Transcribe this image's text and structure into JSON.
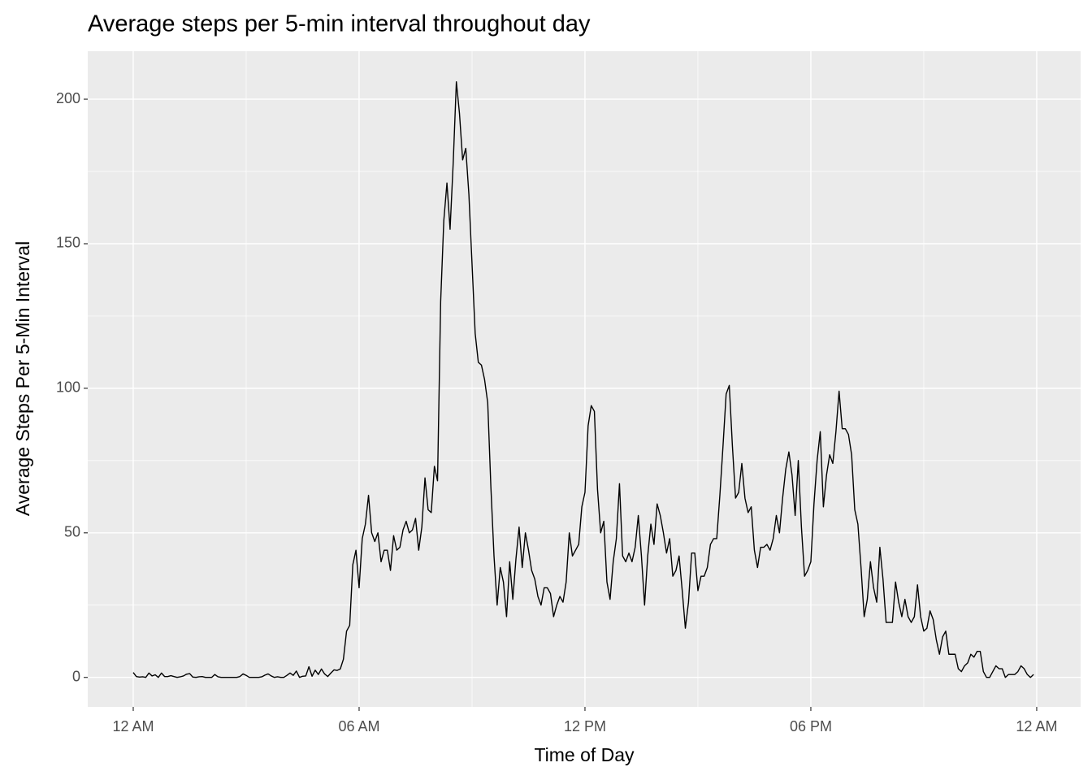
{
  "chart_data": {
    "type": "line",
    "title": "Average steps per 5-min interval throughout day",
    "x_label": "Time of Day",
    "y_label": "Average Steps Per 5-Min Interval",
    "color": "#000000",
    "grid": true,
    "xlim": [
      -72.5,
      1510
    ],
    "ylim": [
      -10.2,
      216.6
    ],
    "xticks": [
      {
        "value": 0,
        "label": "12 AM"
      },
      {
        "value": 360,
        "label": "06 AM"
      },
      {
        "value": 720,
        "label": "12 PM"
      },
      {
        "value": 1080,
        "label": "06 PM"
      },
      {
        "value": 1440,
        "label": "12 AM"
      }
    ],
    "yticks": [
      0,
      50,
      100,
      150,
      200
    ],
    "x": [
      0,
      5,
      10,
      15,
      20,
      25,
      30,
      35,
      40,
      45,
      50,
      55,
      60,
      65,
      70,
      75,
      80,
      85,
      90,
      95,
      100,
      105,
      110,
      115,
      120,
      125,
      130,
      135,
      140,
      145,
      150,
      155,
      160,
      165,
      170,
      175,
      180,
      185,
      190,
      195,
      200,
      205,
      210,
      215,
      220,
      225,
      230,
      235,
      240,
      245,
      250,
      255,
      260,
      265,
      270,
      275,
      280,
      285,
      290,
      295,
      300,
      305,
      310,
      315,
      320,
      325,
      330,
      335,
      340,
      345,
      350,
      355,
      360,
      365,
      370,
      375,
      380,
      385,
      390,
      395,
      400,
      405,
      410,
      415,
      420,
      425,
      430,
      435,
      440,
      445,
      450,
      455,
      460,
      465,
      470,
      475,
      480,
      485,
      490,
      495,
      500,
      505,
      510,
      515,
      520,
      525,
      530,
      535,
      540,
      545,
      550,
      555,
      560,
      565,
      570,
      575,
      580,
      585,
      590,
      595,
      600,
      605,
      610,
      615,
      620,
      625,
      630,
      635,
      640,
      645,
      650,
      655,
      660,
      665,
      670,
      675,
      680,
      685,
      690,
      695,
      700,
      705,
      710,
      715,
      720,
      725,
      730,
      735,
      740,
      745,
      750,
      755,
      760,
      765,
      770,
      775,
      780,
      785,
      790,
      795,
      800,
      805,
      810,
      815,
      820,
      825,
      830,
      835,
      840,
      845,
      850,
      855,
      860,
      865,
      870,
      875,
      880,
      885,
      890,
      895,
      900,
      905,
      910,
      915,
      920,
      925,
      930,
      935,
      940,
      945,
      950,
      955,
      960,
      965,
      970,
      975,
      980,
      985,
      990,
      995,
      1000,
      1005,
      1010,
      1015,
      1020,
      1025,
      1030,
      1035,
      1040,
      1045,
      1050,
      1055,
      1060,
      1065,
      1070,
      1075,
      1080,
      1085,
      1090,
      1095,
      1100,
      1105,
      1110,
      1115,
      1120,
      1125,
      1130,
      1135,
      1140,
      1145,
      1150,
      1155,
      1160,
      1165,
      1170,
      1175,
      1180,
      1185,
      1190,
      1195,
      1200,
      1205,
      1210,
      1215,
      1220,
      1225,
      1230,
      1235,
      1240,
      1245,
      1250,
      1255,
      1260,
      1265,
      1270,
      1275,
      1280,
      1285,
      1290,
      1295,
      1300,
      1305,
      1310,
      1315,
      1320,
      1325,
      1330,
      1335,
      1340,
      1345,
      1350,
      1355,
      1360,
      1365,
      1370,
      1375,
      1380,
      1385,
      1390,
      1395,
      1400,
      1405,
      1410,
      1415,
      1420,
      1425,
      1430,
      1435
    ],
    "values": [
      1.7,
      0.3,
      0.1,
      0.2,
      0,
      1.5,
      0.5,
      0.9,
      0,
      1.5,
      0.3,
      0.3,
      0.6,
      0.3,
      0,
      0.2,
      0.5,
      1.1,
      1.3,
      0.1,
      0,
      0.2,
      0.3,
      0,
      0,
      0,
      1,
      0.2,
      0,
      0,
      0,
      0,
      0,
      0,
      0.3,
      1.2,
      0.7,
      0,
      0,
      0,
      0,
      0.2,
      0.8,
      1.2,
      0.5,
      0,
      0.2,
      0,
      0,
      0.7,
      1.5,
      0.7,
      2.2,
      0,
      0.4,
      0.5,
      3.7,
      0.4,
      2.5,
      1,
      2.9,
      1.2,
      0.3,
      1.5,
      2.6,
      2.4,
      2.9,
      6.3,
      16,
      18,
      39,
      44,
      31,
      48,
      53,
      63,
      50,
      47,
      50,
      40,
      44,
      44,
      37,
      49,
      44,
      45,
      51,
      54,
      50,
      51,
      55,
      44,
      52,
      69,
      58,
      57,
      73,
      68,
      130,
      158,
      171,
      155,
      178,
      206,
      195,
      179,
      183,
      167,
      143,
      119,
      109,
      108,
      103,
      95,
      66,
      42,
      25,
      38,
      33,
      21,
      40,
      27,
      41,
      52,
      38,
      50,
      44,
      37,
      34,
      28,
      25,
      31,
      31,
      29,
      21,
      25,
      28,
      26,
      33,
      50,
      42,
      44,
      46,
      59,
      64,
      87,
      94,
      92,
      65,
      50,
      54,
      33,
      27,
      40,
      48,
      67,
      42,
      40,
      43,
      40,
      45,
      56,
      42,
      25,
      42,
      53,
      46,
      60,
      56,
      50,
      43,
      48,
      35,
      37,
      42,
      30,
      17,
      26,
      43,
      43,
      30,
      35,
      35,
      38,
      46,
      48,
      48,
      63,
      80,
      98,
      101,
      80,
      62,
      64,
      74,
      62,
      57,
      59,
      44,
      38,
      45,
      45,
      46,
      44,
      48,
      56,
      50,
      62,
      72,
      78,
      70,
      56,
      75,
      52,
      35,
      37,
      40,
      60,
      75,
      85,
      59,
      70,
      77,
      74,
      85,
      99,
      86,
      86,
      84,
      77,
      58,
      53,
      38,
      21,
      27,
      40,
      31,
      26,
      45,
      34,
      19,
      19,
      19,
      33,
      26,
      21,
      27,
      21,
      19,
      21,
      32,
      21,
      16,
      17,
      23,
      20,
      13,
      8,
      14,
      16,
      8,
      8,
      8,
      3,
      2,
      4,
      5,
      8,
      7,
      9,
      9,
      2,
      0,
      0,
      2,
      4,
      3,
      3,
      0,
      1,
      1,
      1,
      2,
      4,
      3,
      1,
      0,
      1
    ]
  }
}
